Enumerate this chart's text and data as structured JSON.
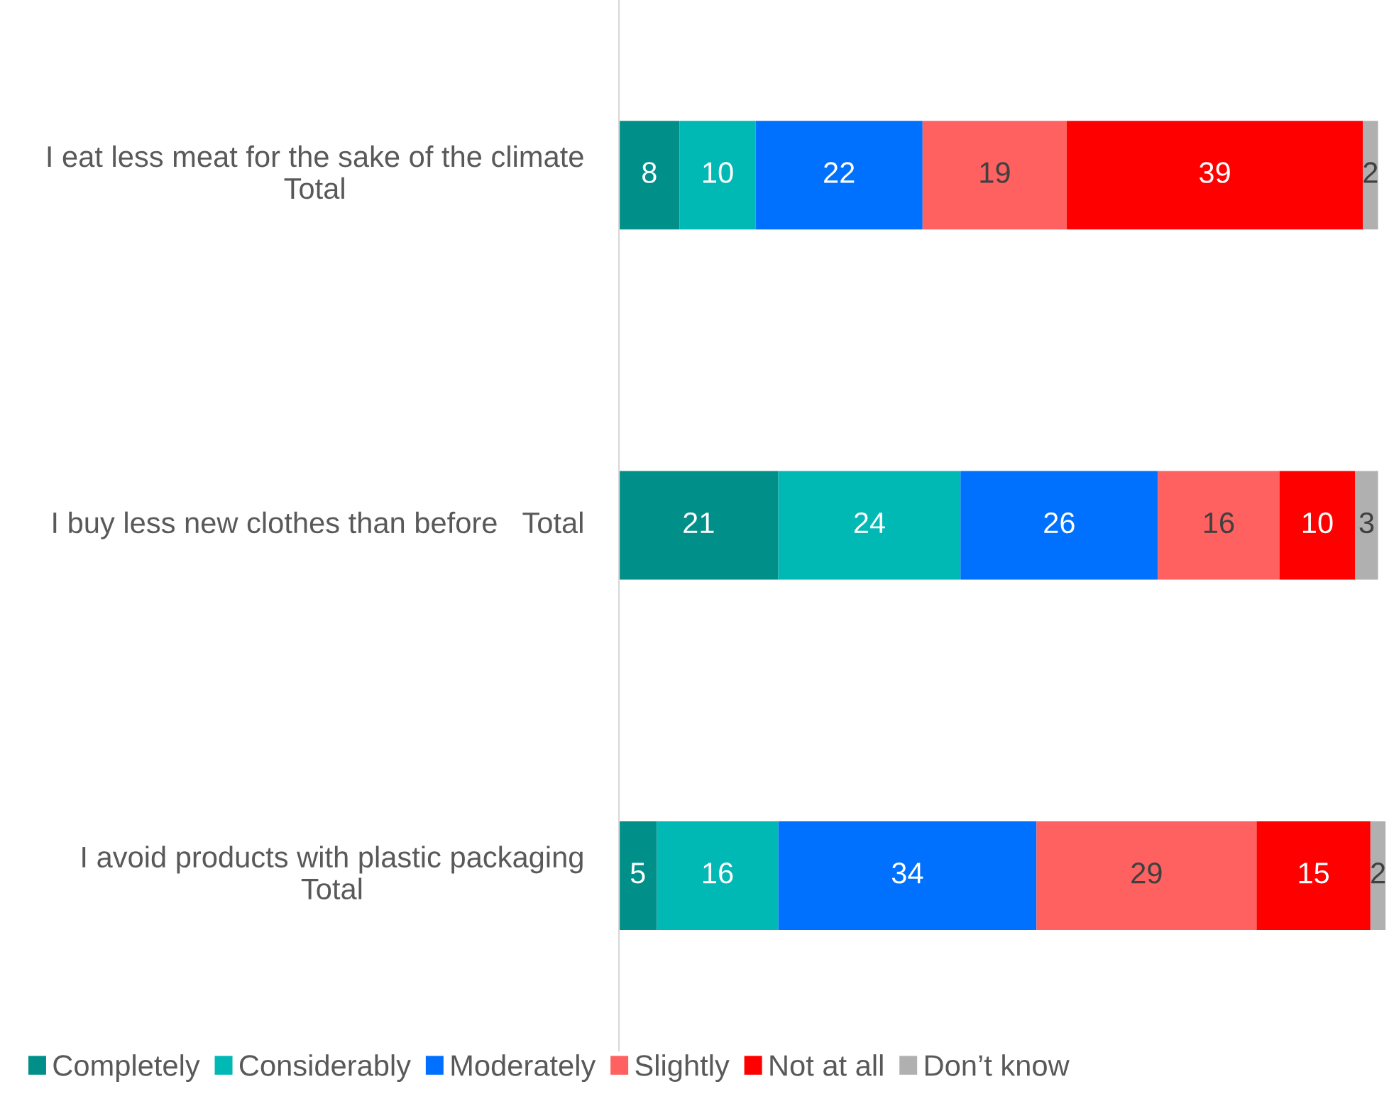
{
  "chart_data": {
    "type": "bar",
    "orientation": "horizontal",
    "stacked": true,
    "data_labels": true,
    "legend": "bottom",
    "xlim": [
      0,
      101
    ],
    "categories": [
      "I eat less meat for the sake of the climate   Total",
      "I buy less new clothes than before   Total",
      "I avoid products with plastic packaging   Total"
    ],
    "series": [
      {
        "name": "Completely",
        "color": "#009089",
        "values": [
          8,
          21,
          5
        ]
      },
      {
        "name": "Considerably",
        "color": "#00b8b4",
        "values": [
          10,
          24,
          16
        ]
      },
      {
        "name": "Moderately",
        "color": "#0070ff",
        "values": [
          22,
          26,
          34
        ]
      },
      {
        "name": "Slightly",
        "color": "#ff6060",
        "values": [
          19,
          16,
          29
        ]
      },
      {
        "name": "Not at all",
        "color": "#ff0000",
        "values": [
          39,
          10,
          15
        ]
      },
      {
        "name": "Don’t know",
        "color": "#b0b0b0",
        "values": [
          2,
          3,
          2
        ]
      }
    ]
  }
}
